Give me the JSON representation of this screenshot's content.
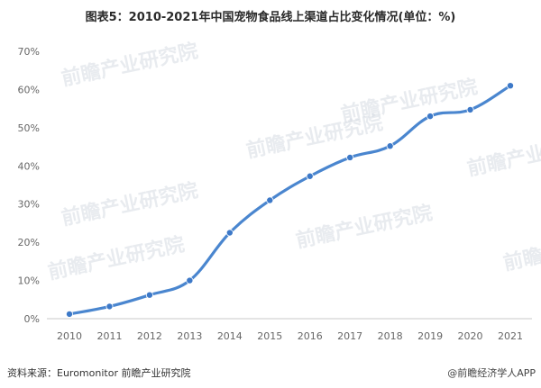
{
  "title": "图表5：2010-2021年中国宠物食品线上渠道占比变化情况(单位：%)",
  "source_text": "资料来源：Euromonitor 前瞻产业研究院",
  "brand_text": "@前瞻经济学人APP",
  "watermark_text": "前瞻产业研究院",
  "colors": {
    "line": "#4a86cf",
    "point": "#3d79c8",
    "axis": "#c8c8c8",
    "grid": "#e6e6e6",
    "tick_text": "#666666"
  },
  "chart_data": {
    "type": "line",
    "title": "图表5：2010-2021年中国宠物食品线上渠道占比变化情况(单位：%)",
    "x": [
      "2010",
      "2011",
      "2012",
      "2013",
      "2014",
      "2015",
      "2016",
      "2017",
      "2018",
      "2019",
      "2020",
      "2021"
    ],
    "series": [
      {
        "values": [
          1.2,
          3.2,
          6.2,
          10.0,
          22.5,
          31.0,
          37.3,
          42.2,
          45.2,
          53.0,
          54.7,
          61.0
        ]
      }
    ],
    "ylim": [
      0,
      70
    ],
    "y_ticks": [
      "0%",
      "10%",
      "20%",
      "30%",
      "40%",
      "50%",
      "60%",
      "70%"
    ],
    "y_tick_values": [
      0,
      10,
      20,
      30,
      40,
      50,
      60,
      70
    ],
    "grid": false,
    "legend": "none"
  }
}
